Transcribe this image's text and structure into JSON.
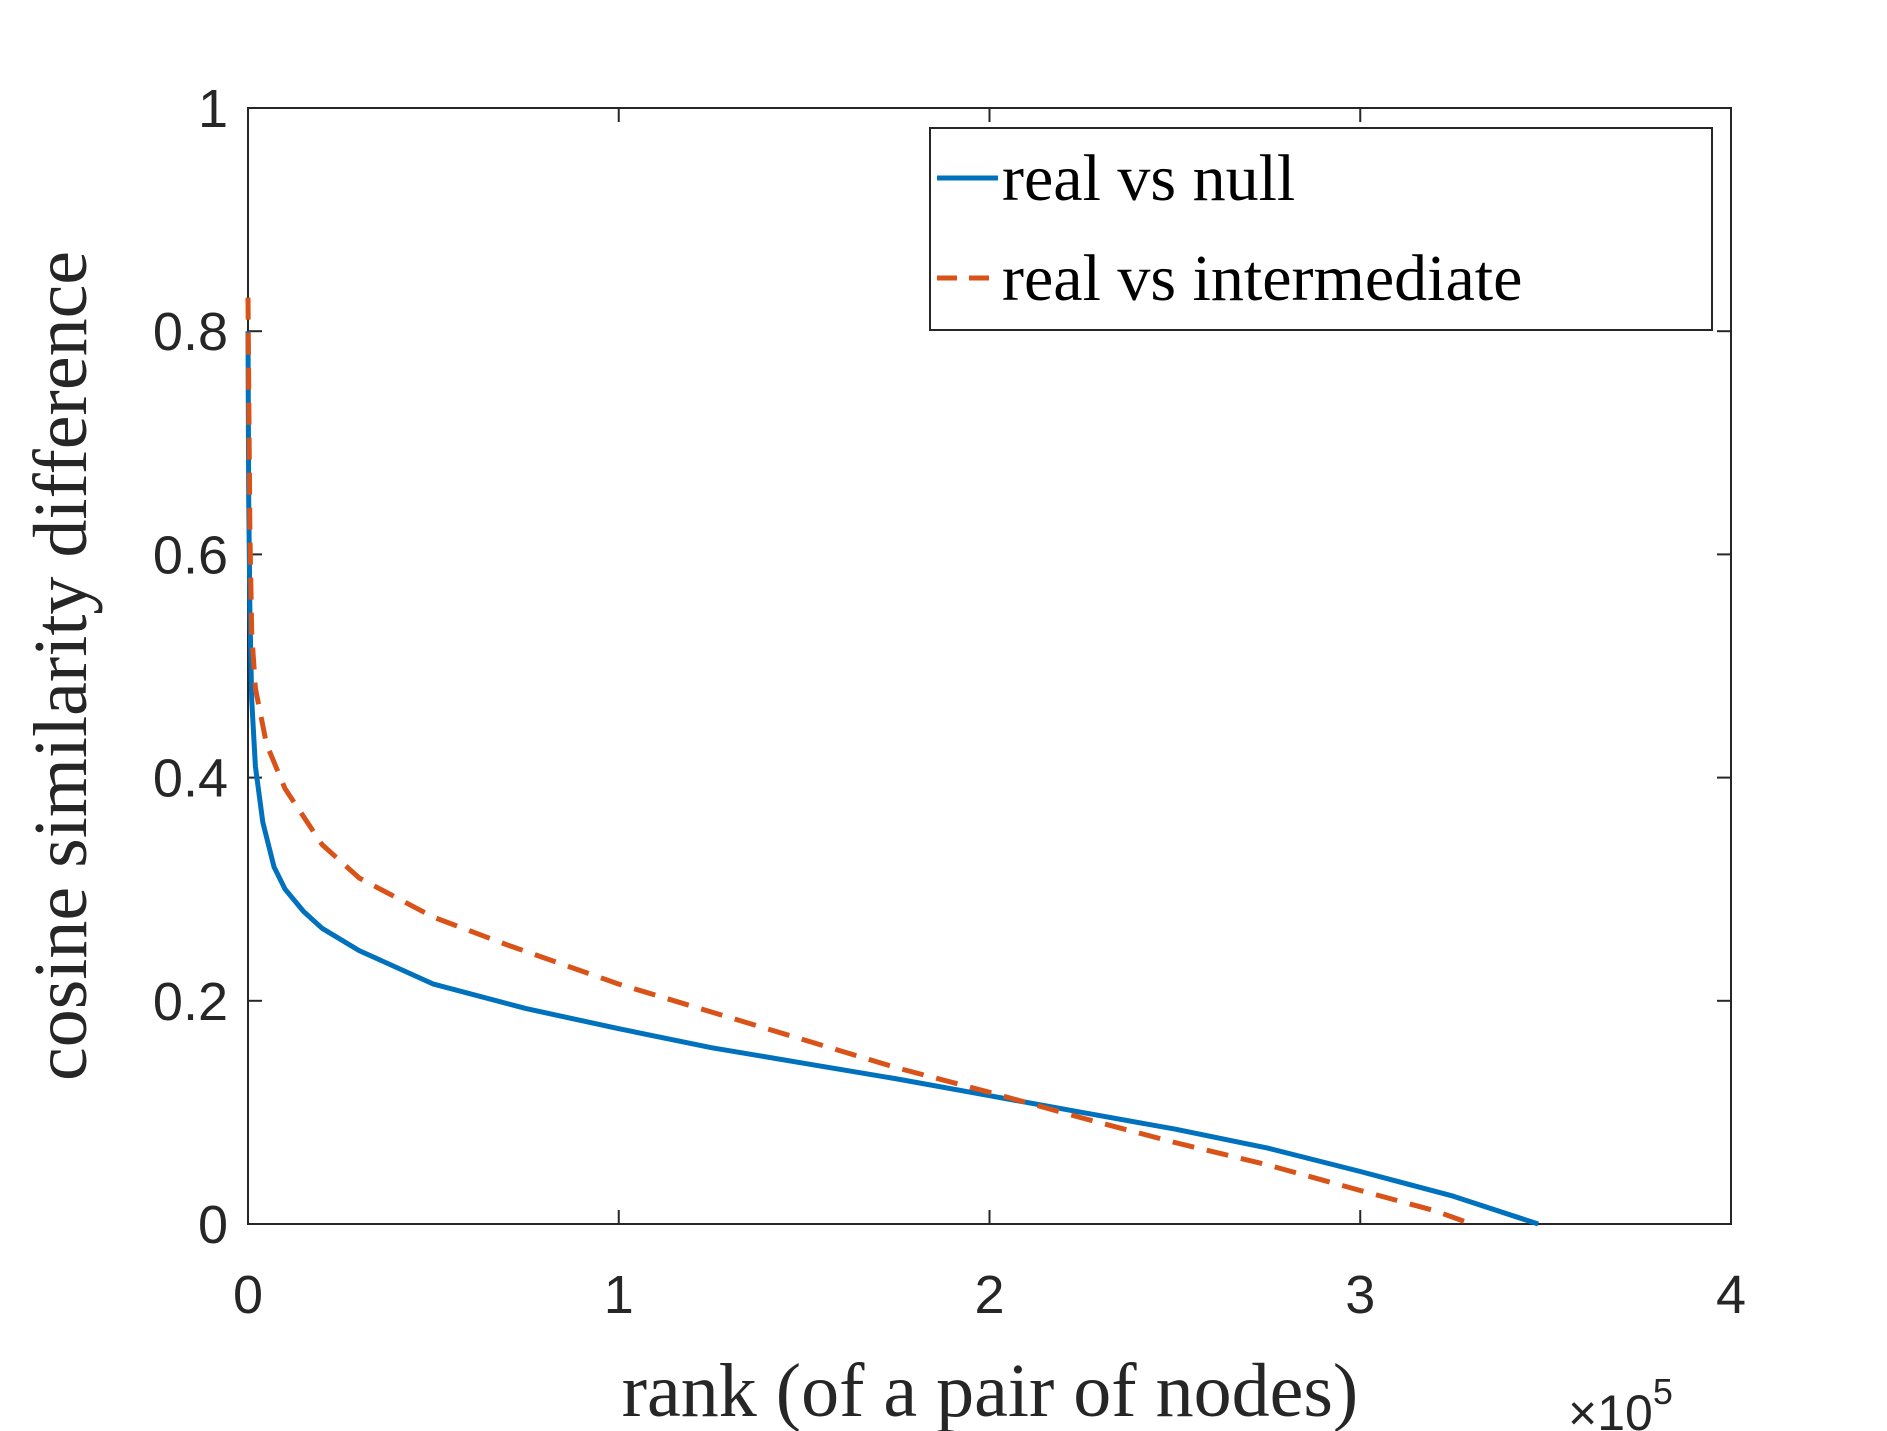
{
  "chart_data": {
    "type": "line",
    "xlabel": "rank (of a pair of nodes)",
    "ylabel": "cosine similarity difference",
    "x_exponent_label": {
      "times": "×10",
      "power": "5"
    },
    "xlim": [
      0,
      4
    ],
    "ylim": [
      0,
      1
    ],
    "x_ticks": [
      "0",
      "1",
      "2",
      "3",
      "4"
    ],
    "y_ticks": [
      "0",
      "0.2",
      "0.4",
      "0.6",
      "0.8",
      "1"
    ],
    "grid": false,
    "legend_position": "top-right",
    "series": [
      {
        "name": "real vs null",
        "color": "#0072BD",
        "style": "solid",
        "x": [
          0,
          0.002,
          0.005,
          0.01,
          0.02,
          0.04,
          0.07,
          0.1,
          0.15,
          0.2,
          0.3,
          0.5,
          0.75,
          1.0,
          1.25,
          1.5,
          1.75,
          2.0,
          2.25,
          2.5,
          2.75,
          3.0,
          3.25,
          3.48
        ],
        "y": [
          0.8,
          0.65,
          0.55,
          0.47,
          0.41,
          0.36,
          0.32,
          0.3,
          0.28,
          0.265,
          0.245,
          0.215,
          0.193,
          0.175,
          0.158,
          0.144,
          0.13,
          0.115,
          0.1,
          0.085,
          0.068,
          0.047,
          0.025,
          0.0
        ]
      },
      {
        "name": "real vs intermediate",
        "color": "#D95319",
        "style": "dashed",
        "x": [
          0,
          0.005,
          0.01,
          0.02,
          0.05,
          0.1,
          0.2,
          0.3,
          0.5,
          0.7,
          1.0,
          1.25,
          1.5,
          1.75,
          2.0,
          2.25,
          2.5,
          2.75,
          3.0,
          3.2,
          3.3
        ],
        "y": [
          0.83,
          0.62,
          0.53,
          0.48,
          0.43,
          0.39,
          0.34,
          0.31,
          0.275,
          0.25,
          0.215,
          0.19,
          0.165,
          0.14,
          0.118,
          0.095,
          0.073,
          0.053,
          0.03,
          0.012,
          0.0
        ]
      }
    ]
  }
}
